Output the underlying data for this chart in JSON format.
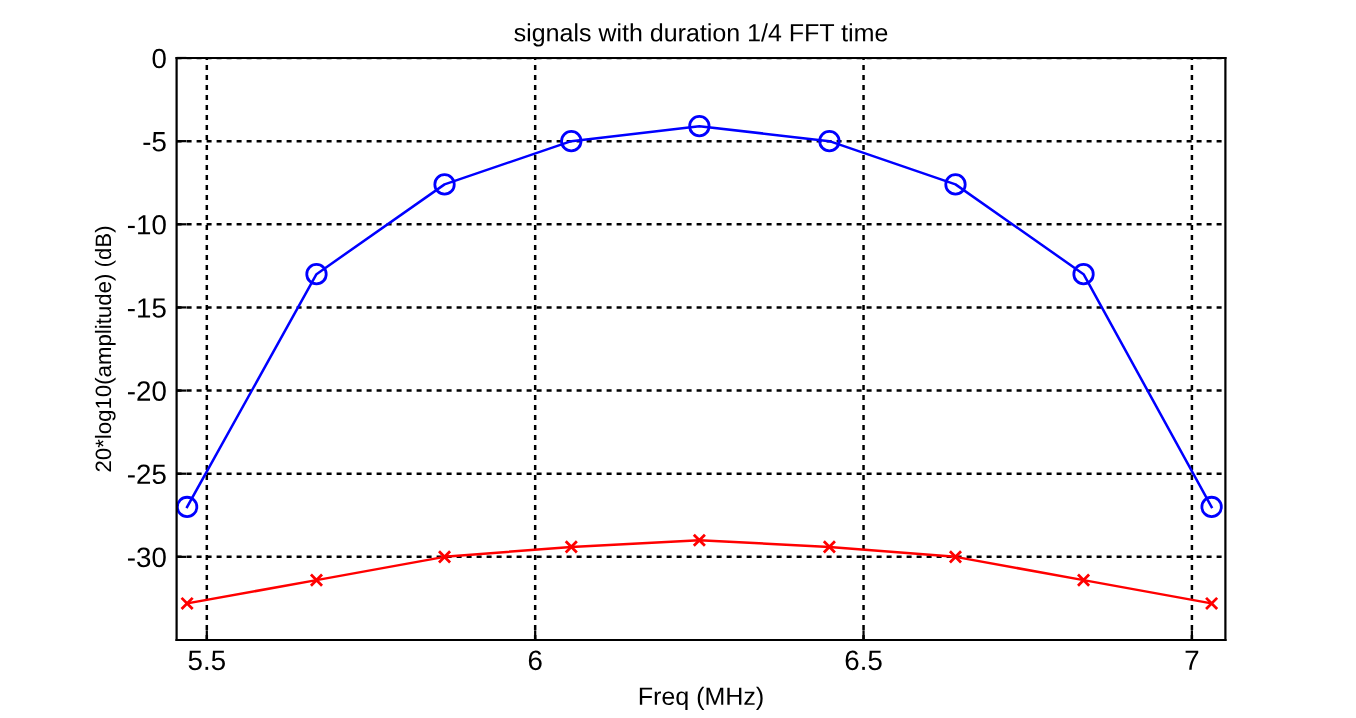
{
  "chart_data": {
    "type": "line",
    "title": "signals with duration 1/4 FFT time",
    "xlabel": "Freq (MHz)",
    "ylabel": "20*log10(amplitude) (dB)",
    "x": [
      5.47,
      5.667,
      5.862,
      6.055,
      6.25,
      6.448,
      6.64,
      6.835,
      7.03
    ],
    "series": [
      {
        "color": "#0000ff",
        "marker": "circle",
        "values": [
          -27,
          -13,
          -7.6,
          -5,
          -4.1,
          -5,
          -7.6,
          -13,
          -27
        ]
      },
      {
        "color": "#ff0000",
        "marker": "cross",
        "values": [
          -32.8,
          -31.4,
          -30,
          -29.4,
          -29.0,
          -29.4,
          -30,
          -31.4,
          -32.8
        ]
      }
    ],
    "xlim": [
      5.454,
      7.051
    ],
    "xticks": [
      5.5,
      6,
      6.5,
      7
    ],
    "ylim": [
      -35,
      0
    ],
    "yticks": [
      -30,
      -25,
      -20,
      -15,
      -10,
      -5,
      0
    ],
    "grid": true,
    "line_style": "solid"
  }
}
